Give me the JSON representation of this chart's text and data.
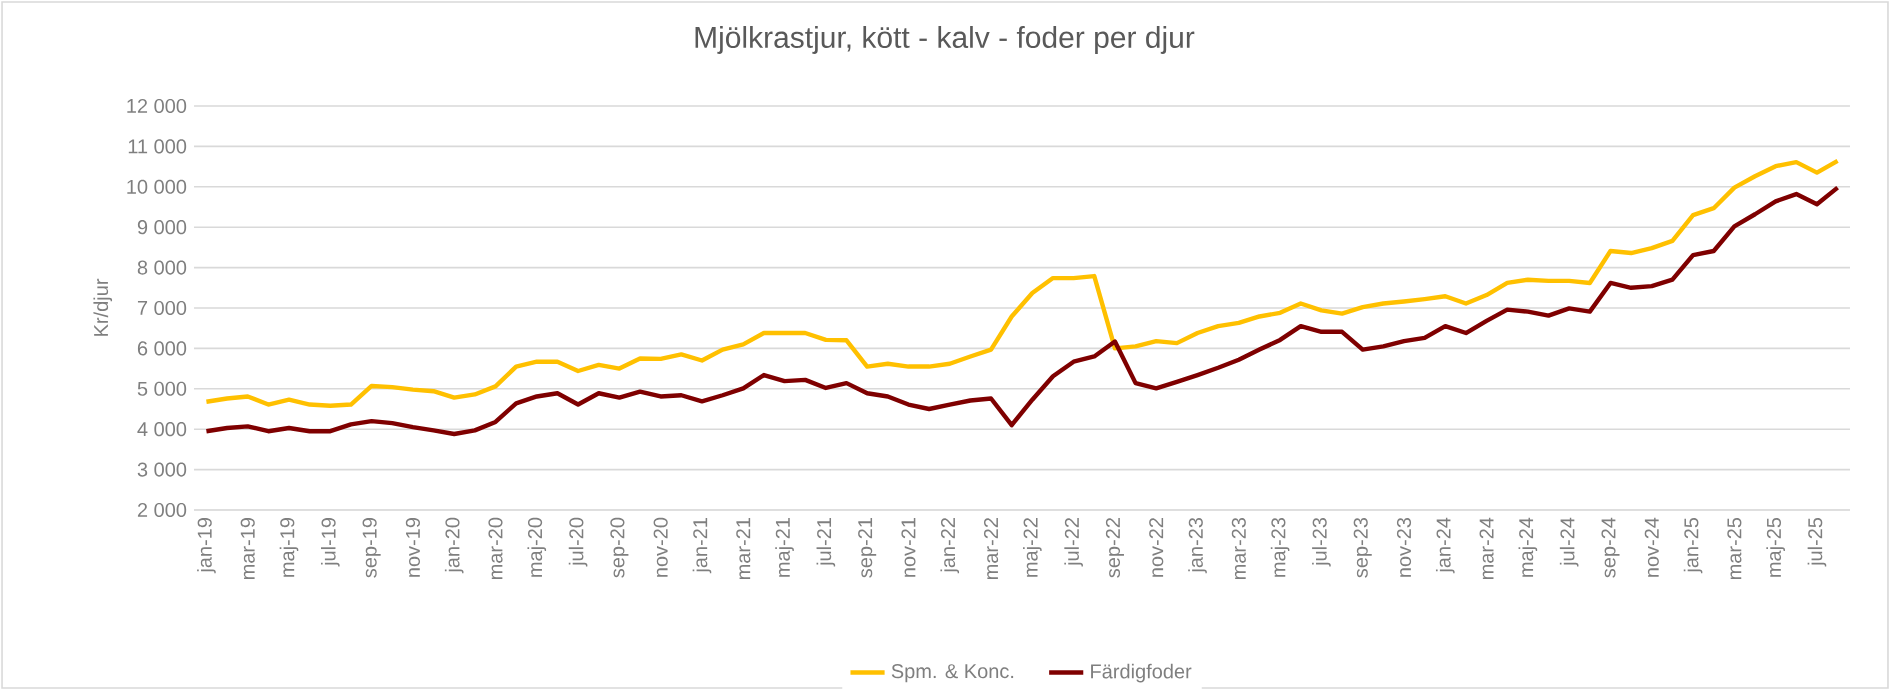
{
  "chart_data": {
    "type": "line",
    "title": "Mjölkrastjur, kött - kalv - foder per djur",
    "ylabel": "Kr/djur",
    "categories": [
      "jan-19",
      null,
      "mar-19",
      null,
      "maj-19",
      null,
      "jul-19",
      null,
      "sep-19",
      null,
      "nov-19",
      null,
      "jan-20",
      null,
      "mar-20",
      null,
      "maj-20",
      null,
      "jul-20",
      null,
      "sep-20",
      null,
      "nov-20",
      null,
      "jan-21",
      null,
      "mar-21",
      null,
      "maj-21",
      null,
      "jul-21",
      null,
      "sep-21",
      null,
      "nov-21",
      null,
      "jan-22",
      null,
      "mar-22",
      null,
      "maj-22",
      null,
      "jul-22",
      null,
      "sep-22",
      null,
      "nov-22",
      null,
      "jan-23",
      null,
      "mar-23",
      null,
      "maj-23",
      null,
      "jul-23",
      null,
      "sep-23",
      null,
      "nov-23",
      null,
      "jan-24",
      null,
      "mar-24",
      null,
      "maj-24",
      null,
      "jul-24",
      null,
      "sep-24",
      null,
      "nov-24",
      null,
      "jan-25",
      null,
      "mar-25",
      null,
      "maj-25",
      null,
      "jul-25",
      null
    ],
    "series": [
      {
        "name": "Spm. & Konc.",
        "color": "#ffc000",
        "values": [
          4680,
          4760,
          4810,
          4610,
          4730,
          4610,
          4580,
          4610,
          5070,
          5040,
          4980,
          4940,
          4780,
          4860,
          5060,
          5550,
          5670,
          5670,
          5440,
          5590,
          5500,
          5750,
          5740,
          5850,
          5700,
          5970,
          6100,
          6380,
          6380,
          6380,
          6210,
          6200,
          5550,
          5620,
          5550,
          5550,
          5620,
          5800,
          5970,
          6790,
          7370,
          7740,
          7740,
          7790,
          6000,
          6050,
          6180,
          6130,
          6380,
          6550,
          6630,
          6790,
          6880,
          7110,
          6940,
          6860,
          7020,
          7110,
          7160,
          7220,
          7290,
          7110,
          7320,
          7620,
          7700,
          7670,
          7670,
          7620,
          8410,
          8360,
          8480,
          8660,
          9300,
          9470,
          9980,
          10260,
          10510,
          10610,
          10350,
          10640
        ]
      },
      {
        "name": "Färdigfoder",
        "color": "#7f0000",
        "values": [
          3950,
          4030,
          4070,
          3950,
          4030,
          3950,
          3950,
          4120,
          4200,
          4150,
          4050,
          3970,
          3880,
          3970,
          4180,
          4640,
          4810,
          4890,
          4610,
          4890,
          4780,
          4930,
          4810,
          4840,
          4690,
          4840,
          5010,
          5340,
          5190,
          5220,
          5020,
          5140,
          4890,
          4810,
          4610,
          4500,
          4610,
          4710,
          4760,
          4100,
          4730,
          5310,
          5670,
          5800,
          6170,
          5140,
          5010,
          5170,
          5340,
          5520,
          5720,
          5970,
          6210,
          6550,
          6410,
          6410,
          5970,
          6050,
          6180,
          6260,
          6550,
          6380,
          6680,
          6960,
          6910,
          6810,
          6990,
          6910,
          7620,
          7500,
          7540,
          7700,
          8310,
          8410,
          9020,
          9320,
          9640,
          9820,
          9570,
          9980
        ]
      }
    ],
    "ylim": [
      2000,
      12000
    ],
    "yticks": [
      {
        "value": 2000,
        "label": "2 000"
      },
      {
        "value": 3000,
        "label": "3 000"
      },
      {
        "value": 4000,
        "label": "4 000"
      },
      {
        "value": 5000,
        "label": "5 000"
      },
      {
        "value": 6000,
        "label": "6 000"
      },
      {
        "value": 7000,
        "label": "7 000"
      },
      {
        "value": 8000,
        "label": "8 000"
      },
      {
        "value": 9000,
        "label": "9 000"
      },
      {
        "value": 10000,
        "label": "10 000"
      },
      {
        "value": 11000,
        "label": "11 000"
      },
      {
        "value": 12000,
        "label": "12 000"
      }
    ],
    "grid": "y",
    "legend": "bottom",
    "marker": "none",
    "line_style": "solid"
  }
}
